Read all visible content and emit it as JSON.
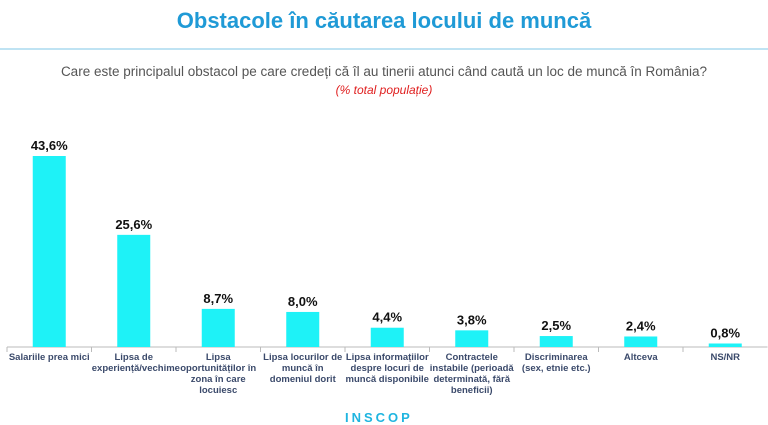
{
  "chart_data": {
    "type": "bar",
    "title": "Obstacole în căutarea locului de muncă",
    "subtitle": "Care este principalul obstacol pe care credeți că îl au tinerii atunci când caută un loc de muncă în România?",
    "unit_note": "(% total populație)",
    "categories": [
      "Salariile prea mici",
      "Lipsa de experiență/vechime",
      "Lipsa oportunităților în zona în care locuiesc",
      "Lipsa locurilor de muncă în domeniul dorit",
      "Lipsa informațiilor despre locuri de muncă disponibile",
      "Contractele instabile (perioadă determinată, fără beneficii)",
      "Discriminarea (sex, etnie etc.)",
      "Altceva",
      "NS/NR"
    ],
    "values": [
      43.6,
      25.6,
      8.7,
      8.0,
      4.4,
      3.8,
      2.5,
      2.4,
      0.8
    ],
    "labels": [
      "43,6%",
      "25,6%",
      "8,7%",
      "8,0%",
      "4,4%",
      "3,8%",
      "2,5%",
      "2,4%",
      "0,8%"
    ],
    "ylim": [
      0,
      45
    ],
    "grid": false,
    "bar_color": "#1ef2f7"
  },
  "footer": {
    "brand": "INSCOP"
  }
}
